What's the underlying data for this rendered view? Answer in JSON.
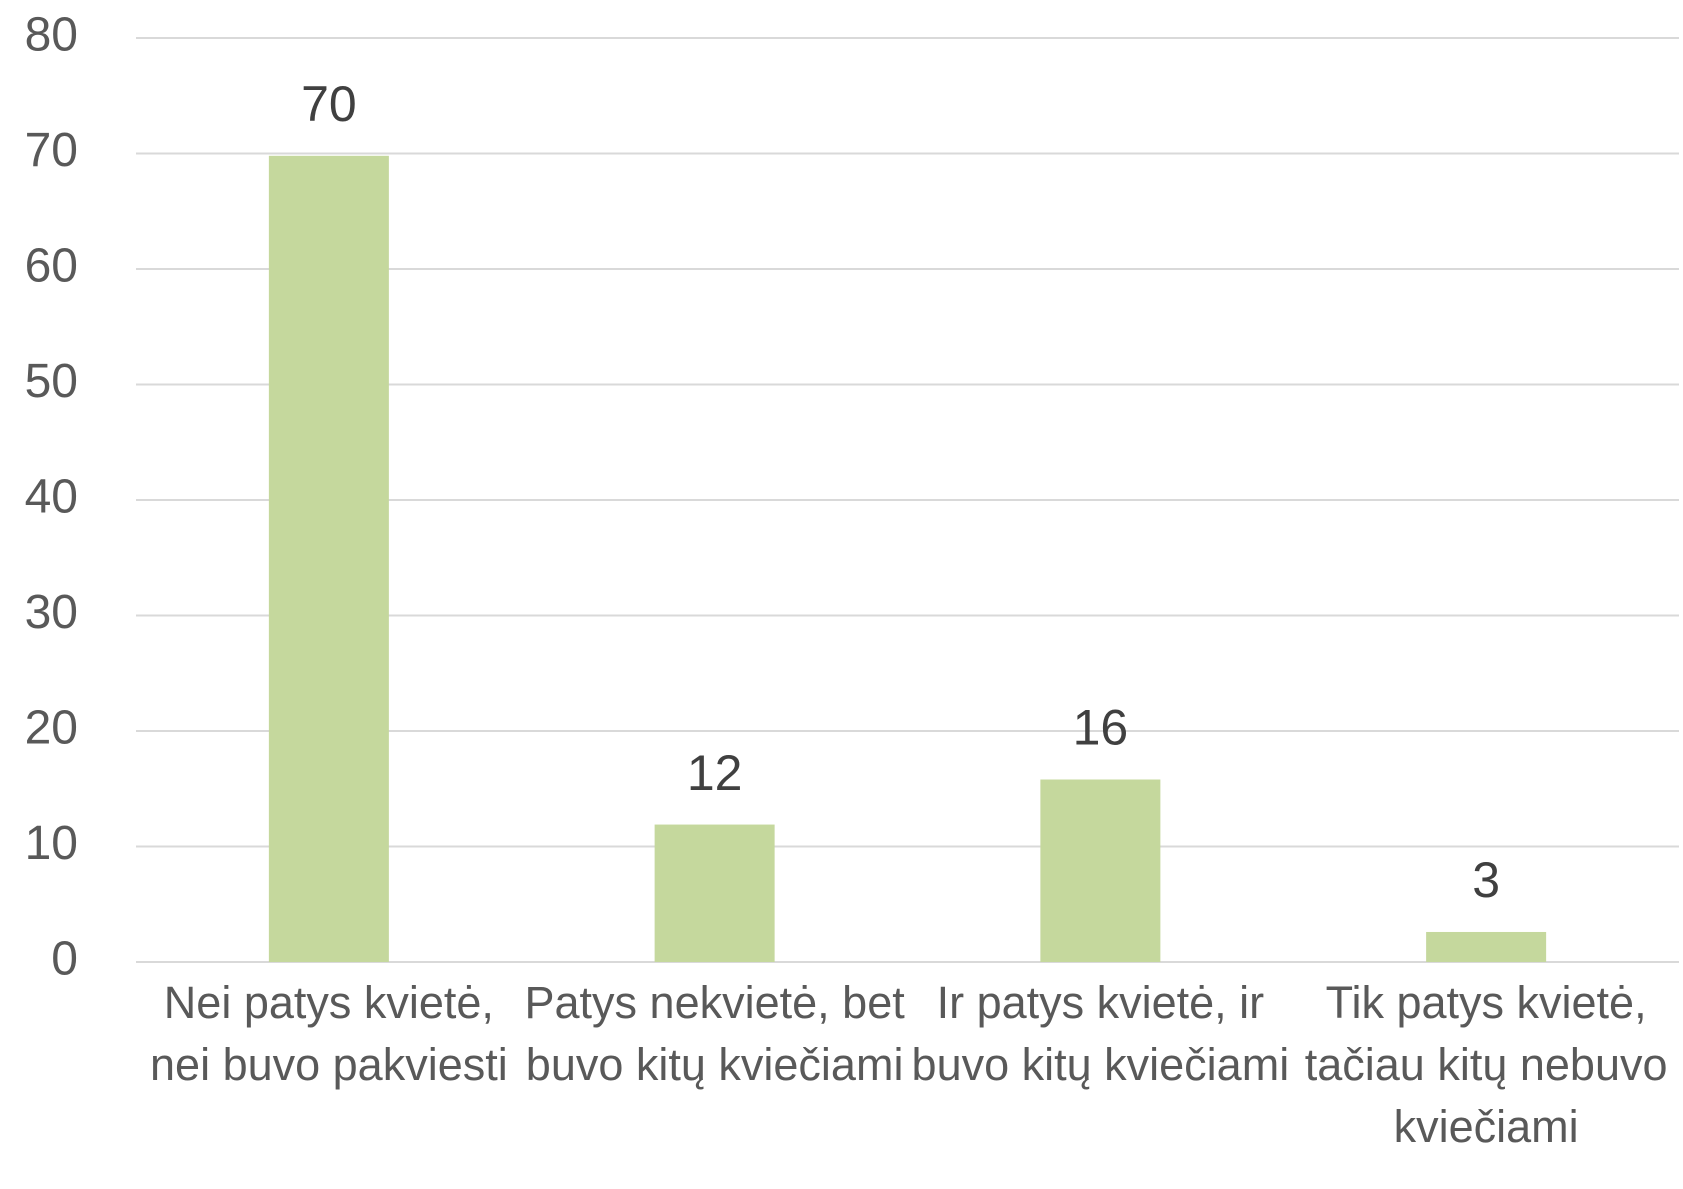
{
  "chart_data": {
    "type": "bar",
    "categories": [
      "Nei patys kvietė, nei buvo pakviesti",
      "Patys nekvietė, bet buvo kitų kviečiami",
      "Ir patys kvietė, ir buvo kitų kviečiami",
      "Tik patys kvietė, tačiau kitų nebuvo kviečiami"
    ],
    "values": [
      69.8,
      11.9,
      15.8,
      2.6
    ],
    "value_labels": [
      "70",
      "12",
      "16",
      "3"
    ],
    "color": "#c5d89d",
    "ylim": [
      0,
      80
    ],
    "yticks": [
      0,
      10,
      20,
      30,
      40,
      50,
      60,
      70,
      80
    ],
    "grid": true
  }
}
